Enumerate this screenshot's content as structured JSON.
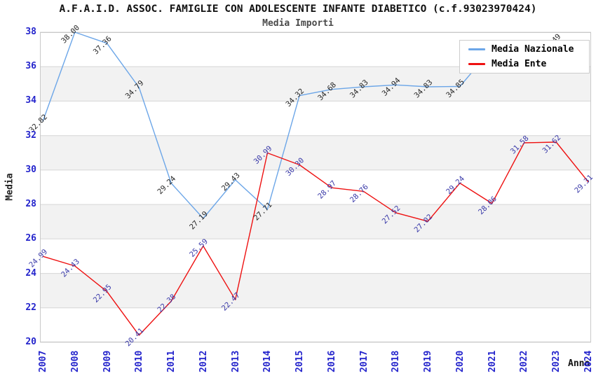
{
  "header": {
    "title": "A.F.A.I.D. ASSOC. FAMIGLIE CON ADOLESCENTE INFANTE DIABETICO (c.f.93023970424)",
    "subtitle": "Media Importi"
  },
  "axes": {
    "y_label": "Media",
    "x_label": "Anno",
    "tick_color": "#2424cc"
  },
  "legend": {
    "position": "top-right",
    "items": [
      {
        "label": "Media Nazionale",
        "color": "#6CA6E8"
      },
      {
        "label": "Media Ente",
        "color": "#EE1111"
      }
    ]
  },
  "chart_data": {
    "type": "line",
    "title": "A.F.A.I.D. ASSOC. FAMIGLIE CON ADOLESCENTE INFANTE DIABETICO (c.f.93023970424)",
    "subtitle": "Media Importi",
    "xlabel": "Anno",
    "ylabel": "Media",
    "x": [
      "2007",
      "2008",
      "2009",
      "2010",
      "2011",
      "2012",
      "2013",
      "2014",
      "2015",
      "2016",
      "2017",
      "2018",
      "2019",
      "2020",
      "2021",
      "2022",
      "2023",
      "2024"
    ],
    "ylim": [
      20,
      38
    ],
    "y_ticks": [
      20,
      22,
      24,
      26,
      28,
      30,
      32,
      34,
      36,
      38
    ],
    "grid": "horizontal",
    "band_color": "#f2f2f2",
    "grid_color": "#d6d6d6",
    "border_color": "#c9c9c9",
    "bands": [
      [
        22,
        24
      ],
      [
        26,
        28
      ],
      [
        30,
        32
      ],
      [
        34,
        36
      ]
    ],
    "series": [
      {
        "name": "Media Nazionale",
        "color": "#6CA6E8",
        "label_color": "#262626",
        "values": [
          32.82,
          38.0,
          37.36,
          34.79,
          29.24,
          27.19,
          29.43,
          27.71,
          34.32,
          34.68,
          34.83,
          34.94,
          34.83,
          34.85,
          37.05,
          37.2,
          37.49,
          37.0
        ],
        "hidden_label_indices": [
          15,
          17
        ]
      },
      {
        "name": "Media Ente",
        "color": "#EE1111",
        "label_color": "#3838a8",
        "values": [
          24.99,
          24.43,
          22.95,
          20.41,
          22.38,
          25.59,
          22.47,
          30.99,
          30.3,
          28.97,
          28.76,
          27.52,
          27.02,
          29.24,
          28.06,
          31.58,
          31.62,
          29.31
        ],
        "hidden_label_indices": []
      }
    ]
  }
}
